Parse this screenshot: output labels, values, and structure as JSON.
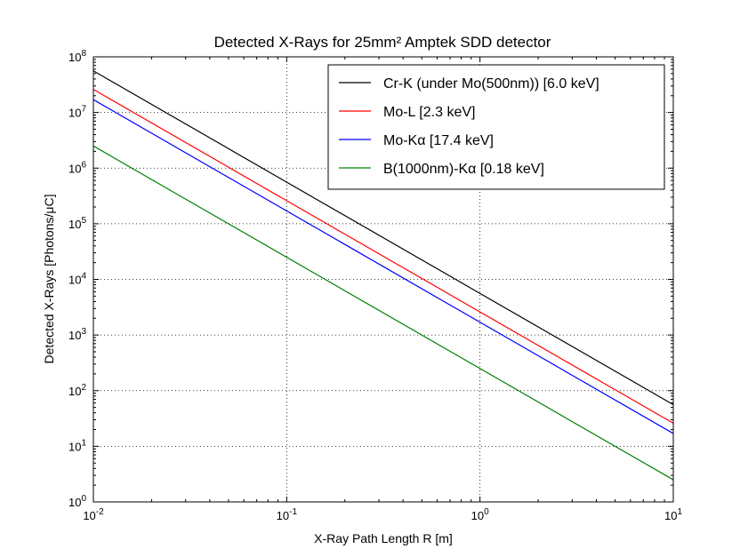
{
  "chart_data": {
    "type": "line",
    "title": "Detected X-Rays for 25mm² Amptek SDD detector",
    "xlabel": "X-Ray Path Length R [m]",
    "ylabel": "Detected X-Rays [Photons/μC]",
    "xscale": "log",
    "yscale": "log",
    "xlim": [
      0.01,
      10
    ],
    "ylim": [
      1,
      100000000
    ],
    "x_ticks": [
      {
        "value": 0.01,
        "base": "10",
        "exp": "-2"
      },
      {
        "value": 0.1,
        "base": "10",
        "exp": "-1"
      },
      {
        "value": 1,
        "base": "10",
        "exp": "0"
      },
      {
        "value": 10,
        "base": "10",
        "exp": "1"
      }
    ],
    "y_ticks": [
      {
        "value": 1,
        "base": "10",
        "exp": "0"
      },
      {
        "value": 10,
        "base": "10",
        "exp": "1"
      },
      {
        "value": 100,
        "base": "10",
        "exp": "2"
      },
      {
        "value": 1000,
        "base": "10",
        "exp": "3"
      },
      {
        "value": 10000,
        "base": "10",
        "exp": "4"
      },
      {
        "value": 100000,
        "base": "10",
        "exp": "5"
      },
      {
        "value": 1000000,
        "base": "10",
        "exp": "6"
      },
      {
        "value": 10000000,
        "base": "10",
        "exp": "7"
      },
      {
        "value": 100000000,
        "base": "10",
        "exp": "8"
      }
    ],
    "grid": true,
    "legend_position": "top-right",
    "series": [
      {
        "name": "Cr-K (under Mo(500nm)) [6.0 keV]",
        "color": "#000000",
        "x": [
          0.01,
          10
        ],
        "y": [
          56000000,
          56
        ]
      },
      {
        "name": "Mo-L [2.3 keV]",
        "color": "#ff0000",
        "x": [
          0.01,
          10
        ],
        "y": [
          26000000,
          26
        ]
      },
      {
        "name": "Mo-Kα [17.4 keV]",
        "color": "#0000ff",
        "x": [
          0.01,
          10
        ],
        "y": [
          17000000,
          17
        ]
      },
      {
        "name": "B(1000nm)-Kα [0.18 keV]",
        "color": "#008000",
        "x": [
          0.01,
          10
        ],
        "y": [
          2500000,
          2.5
        ]
      }
    ]
  }
}
